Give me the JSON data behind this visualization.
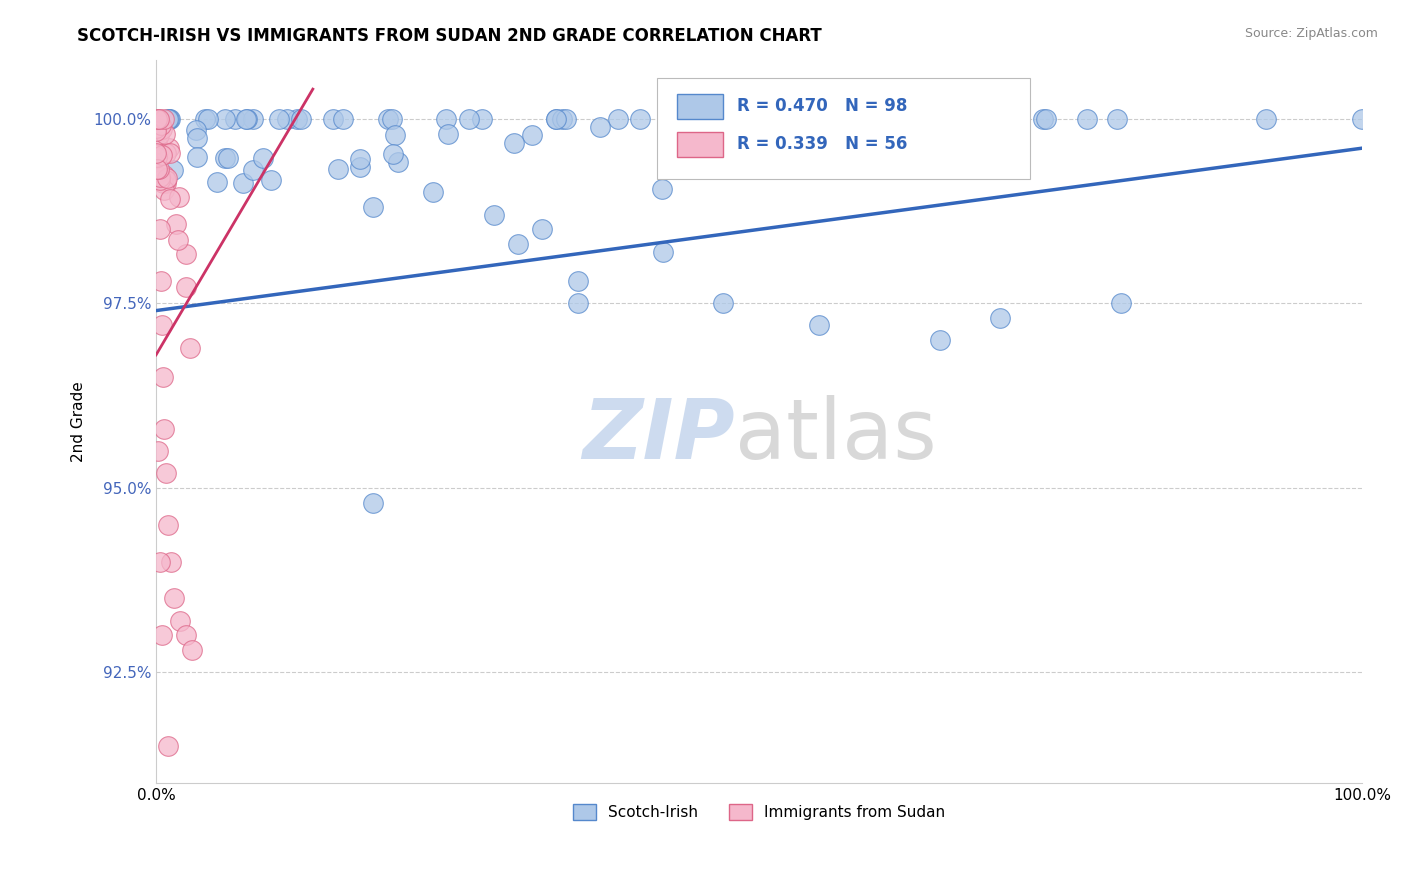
{
  "title": "SCOTCH-IRISH VS IMMIGRANTS FROM SUDAN 2ND GRADE CORRELATION CHART",
  "source": "Source: ZipAtlas.com",
  "ylabel": "2nd Grade",
  "blue_R": 0.47,
  "blue_N": 98,
  "pink_R": 0.339,
  "pink_N": 56,
  "blue_color": "#aec8e8",
  "blue_edge_color": "#5588cc",
  "blue_line_color": "#3366bb",
  "pink_color": "#f5b8cc",
  "pink_edge_color": "#dd6688",
  "pink_line_color": "#cc3366",
  "watermark_zip_color": "#c8d8ee",
  "watermark_atlas_color": "#c8c8c8",
  "legend_label_blue": "Scotch-Irish",
  "legend_label_pink": "Immigrants from Sudan",
  "ytick_color": "#4466bb",
  "ylim_low": 91.0,
  "ylim_high": 100.8,
  "xlim_low": 0.0,
  "xlim_high": 100.0,
  "y_ticks": [
    92.5,
    95.0,
    97.5,
    100.0
  ],
  "y_tick_labels": [
    "92.5%",
    "95.0%",
    "97.5%",
    "100.0%"
  ],
  "blue_line_x0": 0.0,
  "blue_line_x1": 100.0,
  "blue_line_y0": 97.4,
  "blue_line_y1": 99.6,
  "pink_line_x0": 0.0,
  "pink_line_x1": 13.0,
  "pink_line_y0": 96.8,
  "pink_line_y1": 100.4
}
